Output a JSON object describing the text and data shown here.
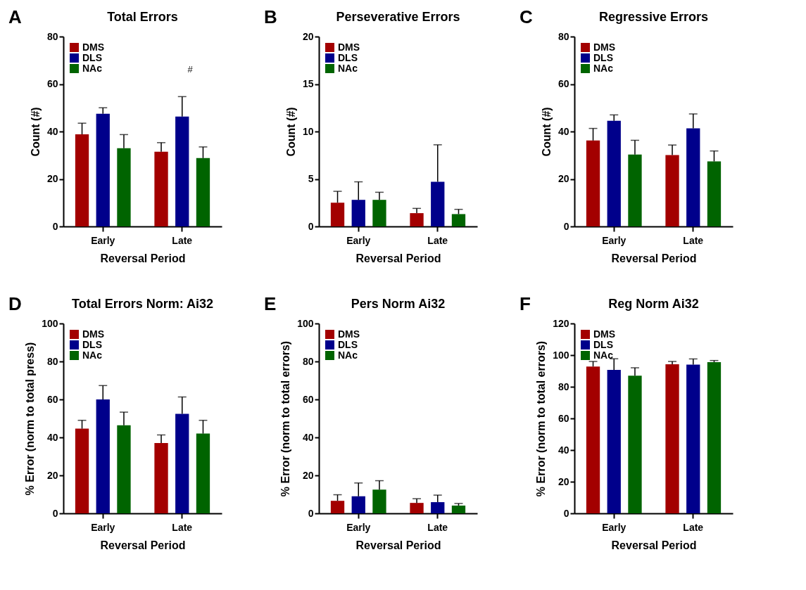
{
  "chart_data": [
    {
      "type": "bar",
      "title": "Total Errors",
      "xlabel": "Reversal Period",
      "ylabel": "Count (#)",
      "categories": [
        "Early",
        "Late"
      ],
      "ylim": [
        0,
        80
      ],
      "yticks": [
        0,
        20,
        40,
        60,
        80
      ],
      "legend": "top left",
      "annotations": [
        "A",
        "#"
      ],
      "series": [
        {
          "name": "DMS",
          "color": "#a30000",
          "values": [
            38.8,
            31.5
          ],
          "errors": [
            [
              38.8,
              43.5
            ],
            [
              31.5,
              35.3
            ]
          ]
        },
        {
          "name": "DLS",
          "color": "#00008b",
          "values": [
            47.5,
            46.3
          ],
          "errors": [
            [
              47.5,
              50
            ],
            [
              46.3,
              54.7
            ]
          ]
        },
        {
          "name": "NAc",
          "color": "#006400",
          "values": [
            33,
            28.8
          ],
          "errors": [
            [
              33,
              38.7
            ],
            [
              28.8,
              33.5
            ]
          ]
        }
      ]
    },
    {
      "type": "bar",
      "title": "Perseverative Errors",
      "xlabel": "Reversal Period",
      "ylabel": "Count (#)",
      "categories": [
        "Early",
        "Late"
      ],
      "ylim": [
        0,
        20
      ],
      "yticks": [
        0,
        5,
        10,
        15,
        20
      ],
      "legend": "top left",
      "annotations": [
        "B"
      ],
      "series": [
        {
          "name": "DMS",
          "color": "#a30000",
          "values": [
            2.5,
            1.4
          ],
          "errors": [
            [
              2.5,
              3.7
            ],
            [
              1.4,
              1.9
            ]
          ]
        },
        {
          "name": "DLS",
          "color": "#00008b",
          "values": [
            2.8,
            4.7
          ],
          "errors": [
            [
              2.8,
              4.7
            ],
            [
              4.7,
              8.6
            ]
          ]
        },
        {
          "name": "NAc",
          "color": "#006400",
          "values": [
            2.8,
            1.3
          ],
          "errors": [
            [
              2.8,
              3.6
            ],
            [
              1.3,
              1.8
            ]
          ]
        }
      ]
    },
    {
      "type": "bar",
      "title": "Regressive Errors",
      "xlabel": "Reversal Period",
      "ylabel": "Count (#)",
      "categories": [
        "Early",
        "Late"
      ],
      "ylim": [
        0,
        80
      ],
      "yticks": [
        0,
        20,
        40,
        60,
        80
      ],
      "legend": "top left",
      "annotations": [
        "C"
      ],
      "series": [
        {
          "name": "DMS",
          "color": "#a30000",
          "values": [
            36.2,
            30.1
          ],
          "errors": [
            [
              36.2,
              41.3
            ],
            [
              30.1,
              34.3
            ]
          ]
        },
        {
          "name": "DLS",
          "color": "#00008b",
          "values": [
            44.5,
            41.3
          ],
          "errors": [
            [
              44.5,
              47
            ],
            [
              41.3,
              47.4
            ]
          ]
        },
        {
          "name": "NAc",
          "color": "#006400",
          "values": [
            30.3,
            27.4
          ],
          "errors": [
            [
              30.3,
              36.3
            ],
            [
              27.4,
              31.8
            ]
          ]
        }
      ]
    },
    {
      "type": "bar",
      "title": "Total Errors Norm: Ai32",
      "xlabel": "Reversal Period",
      "ylabel": "% Error (norm to total press)",
      "categories": [
        "Early",
        "Late"
      ],
      "ylim": [
        0,
        100
      ],
      "yticks": [
        0,
        20,
        40,
        60,
        80,
        100
      ],
      "legend": "top left",
      "annotations": [
        "D"
      ],
      "series": [
        {
          "name": "DMS",
          "color": "#a30000",
          "values": [
            44.6,
            37
          ],
          "errors": [
            [
              44.6,
              49
            ],
            [
              37,
              41.3
            ]
          ]
        },
        {
          "name": "DLS",
          "color": "#00008b",
          "values": [
            60,
            52.4
          ],
          "errors": [
            [
              60,
              67.3
            ],
            [
              52.4,
              61.3
            ]
          ]
        },
        {
          "name": "NAc",
          "color": "#006400",
          "values": [
            46.4,
            42
          ],
          "errors": [
            [
              46.4,
              53.3
            ],
            [
              42,
              49
            ]
          ]
        }
      ]
    },
    {
      "type": "bar",
      "title": "Pers Norm Ai32",
      "xlabel": "Reversal Period",
      "ylabel": "% Error (norm to total errors)",
      "categories": [
        "Early",
        "Late"
      ],
      "ylim": [
        0,
        100
      ],
      "yticks": [
        0,
        20,
        40,
        60,
        80,
        100
      ],
      "legend": "top left",
      "annotations": [
        "E"
      ],
      "series": [
        {
          "name": "DMS",
          "color": "#a30000",
          "values": [
            6.6,
            5.5
          ],
          "errors": [
            [
              6.6,
              9.8
            ],
            [
              5.5,
              7.7
            ]
          ]
        },
        {
          "name": "DLS",
          "color": "#00008b",
          "values": [
            9,
            5.9
          ],
          "errors": [
            [
              9,
              16
            ],
            [
              5.9,
              9.6
            ]
          ]
        },
        {
          "name": "NAc",
          "color": "#006400",
          "values": [
            12.5,
            4.1
          ],
          "errors": [
            [
              12.5,
              17.2
            ],
            [
              4.1,
              5.2
            ]
          ]
        }
      ]
    },
    {
      "type": "bar",
      "title": "Reg Norm Ai32",
      "xlabel": "Reversal Period",
      "ylabel": "% Error (norm to total errors)",
      "categories": [
        "Early",
        "Late"
      ],
      "ylim": [
        0,
        120
      ],
      "yticks": [
        0,
        20,
        40,
        60,
        80,
        100,
        120
      ],
      "legend": "top left",
      "annotations": [
        "F"
      ],
      "series": [
        {
          "name": "DMS",
          "color": "#a30000",
          "values": [
            92.8,
            94.2
          ],
          "errors": [
            [
              92.8,
              96
            ],
            [
              94.2,
              96
            ]
          ]
        },
        {
          "name": "DLS",
          "color": "#00008b",
          "values": [
            90.7,
            94
          ],
          "errors": [
            [
              90.7,
              97.7
            ],
            [
              94,
              97.6
            ]
          ]
        },
        {
          "name": "NAc",
          "color": "#006400",
          "values": [
            87,
            95.6
          ],
          "errors": [
            [
              87,
              92
            ],
            [
              95.6,
              96.6
            ]
          ]
        }
      ]
    }
  ]
}
